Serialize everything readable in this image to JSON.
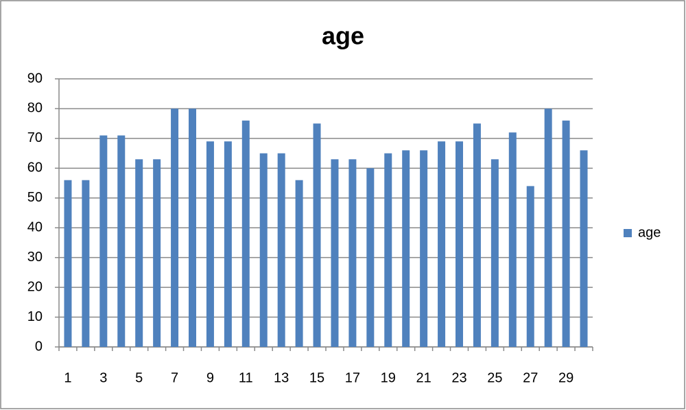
{
  "chart_data": {
    "type": "bar",
    "title": "age",
    "categories": [
      "1",
      null,
      "3",
      null,
      "5",
      null,
      "7",
      null,
      "9",
      null,
      "11",
      null,
      "13",
      null,
      "15",
      null,
      "17",
      null,
      "19",
      null,
      "21",
      null,
      "23",
      null,
      "25",
      null,
      "27",
      null,
      "29",
      null
    ],
    "series": [
      {
        "name": "age",
        "color": "#4f81bd",
        "values": [
          56,
          56,
          71,
          71,
          63,
          63,
          80,
          80,
          69,
          69,
          76,
          65,
          65,
          56,
          75,
          63,
          63,
          60,
          65,
          66,
          66,
          69,
          69,
          75,
          63,
          72,
          54,
          80,
          76,
          66
        ]
      }
    ],
    "ylim": [
      0,
      90
    ],
    "yticks": [
      0,
      10,
      20,
      30,
      40,
      50,
      60,
      70,
      80,
      90
    ],
    "grid": true,
    "legend": "right"
  }
}
